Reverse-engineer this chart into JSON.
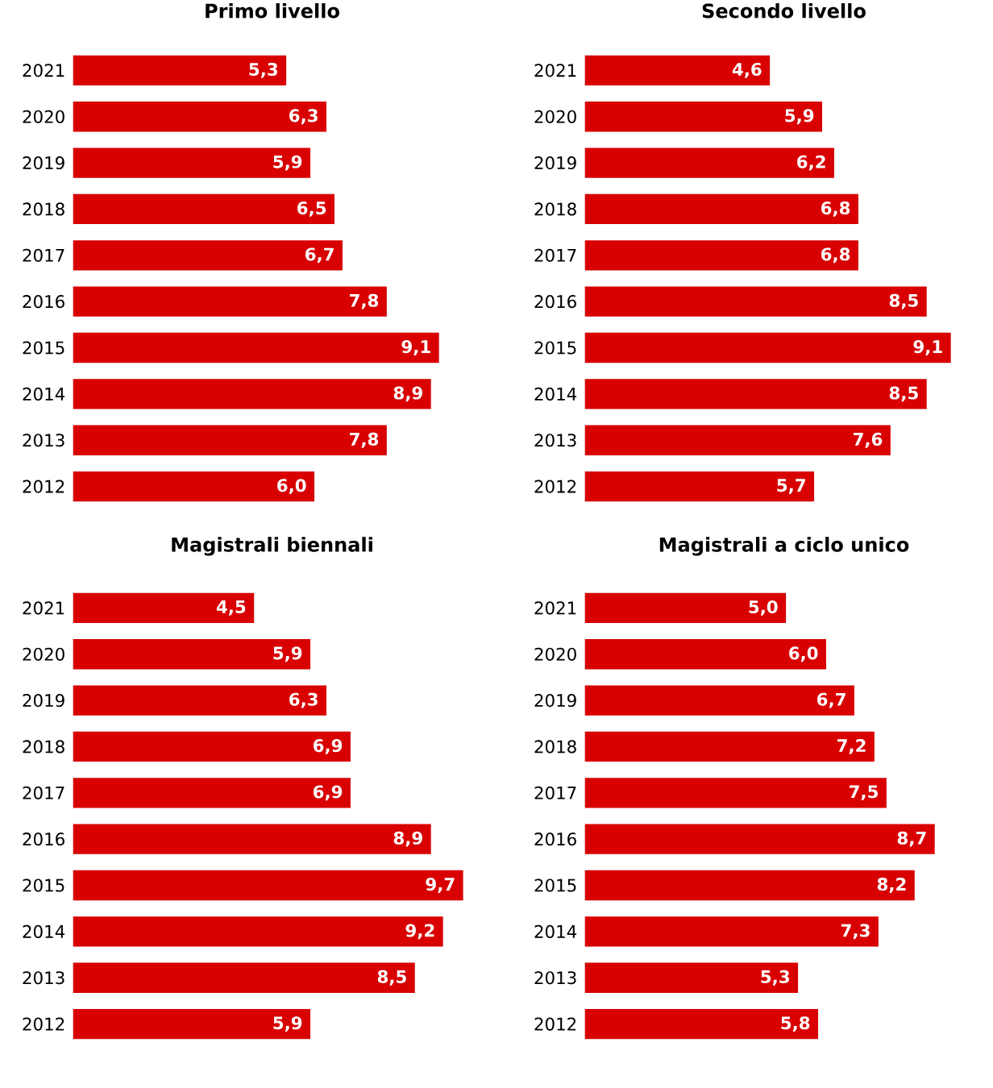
{
  "chart_data": [
    {
      "type": "bar",
      "orientation": "horizontal",
      "title": "Primo livello",
      "categories": [
        "2021",
        "2020",
        "2019",
        "2018",
        "2017",
        "2016",
        "2015",
        "2014",
        "2013",
        "2012"
      ],
      "values": [
        5.3,
        6.3,
        5.9,
        6.5,
        6.7,
        7.8,
        9.1,
        8.9,
        7.8,
        6.0
      ],
      "value_labels": [
        "5,3",
        "6,3",
        "5,9",
        "6,5",
        "6,7",
        "7,8",
        "9,1",
        "8,9",
        "7,8",
        "6,0"
      ],
      "color": "#d80000"
    },
    {
      "type": "bar",
      "orientation": "horizontal",
      "title": "Secondo livello",
      "categories": [
        "2021",
        "2020",
        "2019",
        "2018",
        "2017",
        "2016",
        "2015",
        "2014",
        "2013",
        "2012"
      ],
      "values": [
        4.6,
        5.9,
        6.2,
        6.8,
        6.8,
        8.5,
        9.1,
        8.5,
        7.6,
        5.7
      ],
      "value_labels": [
        "4,6",
        "5,9",
        "6,2",
        "6,8",
        "6,8",
        "8,5",
        "9,1",
        "8,5",
        "7,6",
        "5,7"
      ],
      "color": "#d80000"
    },
    {
      "type": "bar",
      "orientation": "horizontal",
      "title": "Magistrali biennali",
      "categories": [
        "2021",
        "2020",
        "2019",
        "2018",
        "2017",
        "2016",
        "2015",
        "2014",
        "2013",
        "2012"
      ],
      "values": [
        4.5,
        5.9,
        6.3,
        6.9,
        6.9,
        8.9,
        9.7,
        9.2,
        8.5,
        5.9
      ],
      "value_labels": [
        "4,5",
        "5,9",
        "6,3",
        "6,9",
        "6,9",
        "8,9",
        "9,7",
        "9,2",
        "8,5",
        "5,9"
      ],
      "color": "#d80000"
    },
    {
      "type": "bar",
      "orientation": "horizontal",
      "title": "Magistrali a ciclo unico",
      "categories": [
        "2021",
        "2020",
        "2019",
        "2018",
        "2017",
        "2016",
        "2015",
        "2014",
        "2013",
        "2012"
      ],
      "values": [
        5.0,
        6.0,
        6.7,
        7.2,
        7.5,
        8.7,
        8.2,
        7.3,
        5.3,
        5.8
      ],
      "value_labels": [
        "5,0",
        "6,0",
        "6,7",
        "7,2",
        "7,5",
        "8,7",
        "8,2",
        "7,3",
        "5,3",
        "5,8"
      ],
      "color": "#d80000"
    }
  ]
}
